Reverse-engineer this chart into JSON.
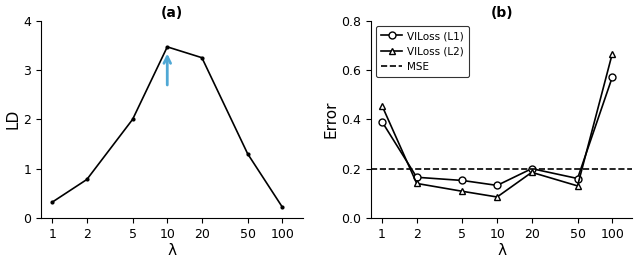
{
  "lambda_values": [
    1,
    2,
    5,
    10,
    20,
    50,
    100
  ],
  "lambda_labels": [
    "1",
    "2",
    "5",
    "10",
    "20",
    "50",
    "100"
  ],
  "panel_a": {
    "title": "(a)",
    "xlabel": "λ",
    "ylabel": "LD",
    "ylim": [
      0,
      4
    ],
    "yticks": [
      0,
      1,
      2,
      3,
      4
    ],
    "values": [
      0.32,
      0.78,
      2.0,
      3.47,
      3.25,
      1.3,
      0.22
    ],
    "arrow_color": "#4fa8d5",
    "arrow_idx": 3
  },
  "panel_b": {
    "title": "(b)",
    "xlabel": "λ",
    "ylabel": "Error",
    "ylim": [
      0,
      0.8
    ],
    "yticks": [
      0,
      0.2,
      0.4,
      0.6,
      0.8
    ],
    "l1_values": [
      0.39,
      0.165,
      0.152,
      0.132,
      0.2,
      0.16,
      0.57
    ],
    "l2_values": [
      0.455,
      0.14,
      0.108,
      0.085,
      0.185,
      0.13,
      0.665
    ],
    "mse_value": 0.2,
    "legend_labels": [
      "VILoss (L1)",
      "VILoss (L2)",
      "MSE"
    ]
  },
  "line_color": "#000000",
  "markersize_dot": 4,
  "markersize": 5,
  "linewidth": 1.2,
  "background_color": "#ffffff"
}
